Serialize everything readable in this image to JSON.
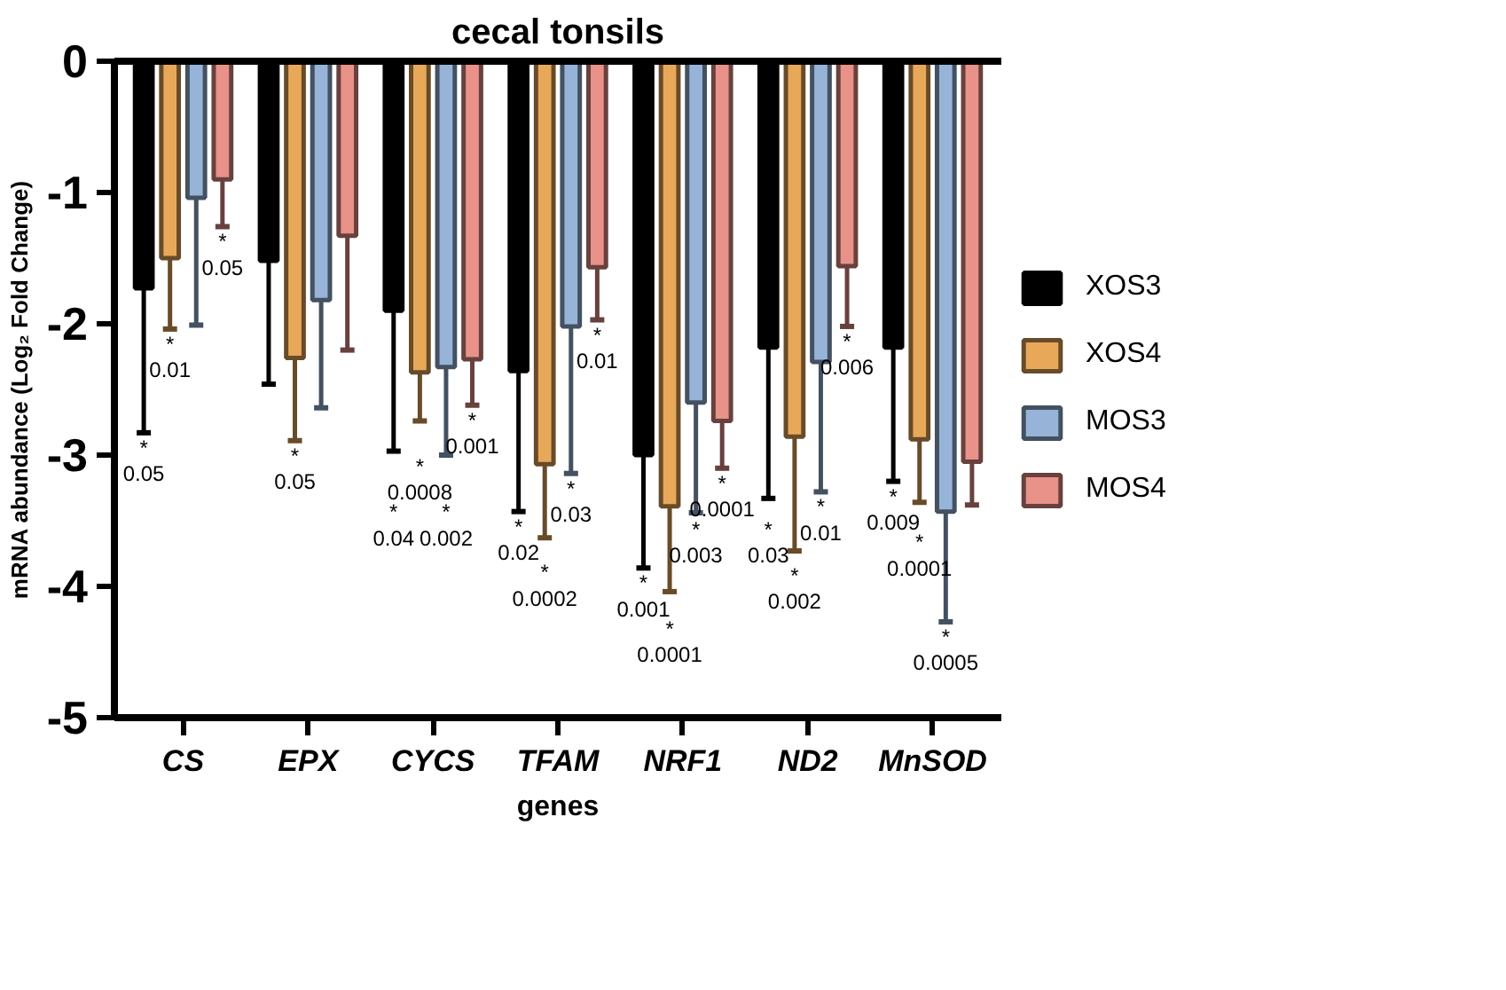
{
  "chart_data": {
    "type": "bar",
    "title": "cecal tonsils",
    "xlabel": "genes",
    "ylabel": "mRNA abundance (Log₂ Fold Change)",
    "categories": [
      "CS",
      "EPX",
      "CYCS",
      "TFAM",
      "NRF1",
      "ND2",
      "MnSOD"
    ],
    "ylim": [
      -5,
      0
    ],
    "yticks": [
      0,
      -1,
      -2,
      -3,
      -4,
      -5
    ],
    "grid": false,
    "legend": "right",
    "series": [
      {
        "name": "XOS3",
        "color": "#000000",
        "values": [
          -1.73,
          -1.52,
          -1.9,
          -2.36,
          -3.0,
          -2.18,
          -2.18
        ],
        "errors": [
          [
            -2.83,
            -1.73
          ],
          [
            -2.46,
            -1.52
          ],
          [
            -2.97,
            -1.9
          ],
          [
            -3.43,
            -2.36
          ],
          [
            -3.86,
            -3.0
          ],
          [
            -3.33,
            -2.18
          ],
          [
            -3.2,
            -2.18
          ]
        ]
      },
      {
        "name": "XOS4",
        "color": "#e8a85a",
        "values": [
          -1.5,
          -2.26,
          -2.37,
          -3.07,
          -3.39,
          -2.86,
          -2.88
        ],
        "errors": [
          [
            -2.04,
            -1.5
          ],
          [
            -2.89,
            -2.26
          ],
          [
            -2.74,
            -2.37
          ],
          [
            -3.63,
            -3.07
          ],
          [
            -4.04,
            -3.39
          ],
          [
            -3.73,
            -2.86
          ],
          [
            -3.36,
            -2.88
          ]
        ]
      },
      {
        "name": "MOS3",
        "color": "#97b4d8",
        "values": [
          -1.04,
          -1.82,
          -2.33,
          -2.02,
          -2.6,
          -2.29,
          -3.43
        ],
        "errors": [
          [
            -2.01,
            -1.04
          ],
          [
            -2.64,
            -1.82
          ],
          [
            -3.0,
            -2.33
          ],
          [
            -3.14,
            -2.02
          ],
          [
            -3.44,
            -2.6
          ],
          [
            -3.28,
            -2.29
          ],
          [
            -4.27,
            -3.43
          ]
        ]
      },
      {
        "name": "MOS4",
        "color": "#e8928a",
        "values": [
          -0.9,
          -1.33,
          -2.27,
          -1.57,
          -2.74,
          -1.56,
          -3.05
        ],
        "errors": [
          [
            -1.26,
            -0.9
          ],
          [
            -2.2,
            -1.33
          ],
          [
            -2.62,
            -2.27
          ],
          [
            -1.97,
            -1.57
          ],
          [
            -3.1,
            -2.74
          ],
          [
            -2.02,
            -1.56
          ],
          [
            -3.38,
            -3.05
          ]
        ]
      }
    ],
    "annotations": [
      {
        "text": "*\n0.05",
        "y": -2.83
      },
      {
        "text": "*\n0.01",
        "y": -2.04
      },
      {
        "text": "*\n0.05",
        "y": -1.26
      },
      {
        "text": "*\n0.05",
        "y": -2.89
      },
      {
        "text": "*\n0.04",
        "y": -2.97
      },
      {
        "text": "*\n0.0008",
        "y": -2.74
      },
      {
        "text": "*\n0.002",
        "y": -3.0
      },
      {
        "text": "*\n0.001",
        "y": -2.62
      },
      {
        "text": "*\n0.02",
        "y": -3.43
      },
      {
        "text": "*\n0.0002",
        "y": -3.63
      },
      {
        "text": "*\n0.03",
        "y": -3.14
      },
      {
        "text": "*\n0.01",
        "y": -1.97
      },
      {
        "text": "*\n0.001",
        "y": -3.86
      },
      {
        "text": "*\n0.0001",
        "y": -4.04
      },
      {
        "text": "*\n0.003",
        "y": -3.44
      },
      {
        "text": "*\n0.0001",
        "y": -3.1
      },
      {
        "text": "*\n0.03",
        "y": -3.33
      },
      {
        "text": "*\n0.002",
        "y": -3.73
      },
      {
        "text": "*\n0.01",
        "y": -3.28
      },
      {
        "text": "*\n0.006",
        "y": -2.02
      },
      {
        "text": "*\n0.009",
        "y": -3.2
      },
      {
        "text": "*\n0.0001",
        "y": -3.36
      },
      {
        "text": "*\n0.0005",
        "y": -4.27
      }
    ]
  }
}
